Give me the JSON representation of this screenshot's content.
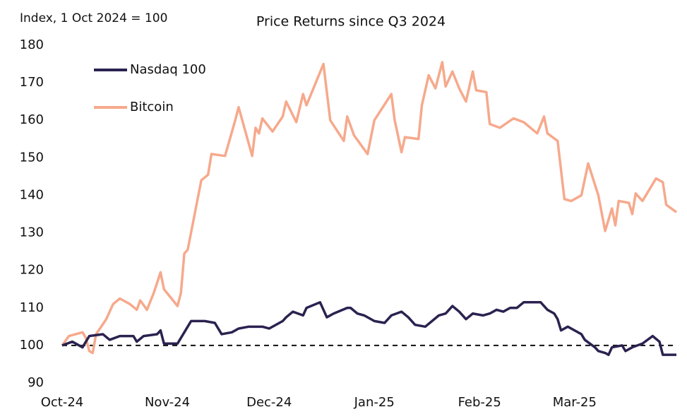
{
  "chart_data": {
    "type": "line",
    "title": "Price Returns since Q3 2024",
    "ylabel": "Index, 1 Oct 2024 = 100",
    "xlim": [
      0,
      181
    ],
    "xticks": [
      {
        "value": 0,
        "label": "Oct-24"
      },
      {
        "value": 31,
        "label": "Nov-24"
      },
      {
        "value": 61,
        "label": "Dec-24"
      },
      {
        "value": 92,
        "label": "Jan-25"
      },
      {
        "value": 123,
        "label": "Feb-25"
      },
      {
        "value": 151,
        "label": "Mar-25"
      }
    ],
    "ylim": [
      90,
      180
    ],
    "yticks": [
      90,
      100,
      110,
      120,
      130,
      140,
      150,
      160,
      170,
      180
    ],
    "reference_line": 100,
    "legend": "upper left",
    "series": [
      {
        "name": "Nasdaq 100",
        "color": "#2b2250",
        "x": [
          0,
          3,
          6,
          8,
          12,
          14,
          17,
          21,
          22,
          24,
          28,
          29,
          30,
          34,
          37,
          38,
          42,
          45,
          47,
          50,
          52,
          55,
          59,
          61,
          65,
          66,
          68,
          71,
          72,
          76,
          78,
          80,
          84,
          85,
          87,
          89,
          92,
          95,
          97,
          100,
          102,
          104,
          107,
          109,
          111,
          113,
          115,
          117,
          119,
          121,
          124,
          126,
          128,
          130,
          132,
          134,
          136,
          140,
          141,
          143,
          145,
          146,
          147,
          149,
          151,
          153,
          154,
          157,
          158,
          160,
          161,
          162,
          165,
          166,
          168,
          171,
          174,
          176,
          177,
          181
        ],
        "values": [
          100,
          101,
          99.5,
          102.5,
          103,
          101.5,
          102.5,
          102.5,
          101,
          102.5,
          103,
          104,
          100.5,
          100.5,
          105,
          106.5,
          106.5,
          106,
          103,
          103.5,
          104.5,
          105,
          105,
          104.5,
          106.5,
          107.5,
          109,
          108,
          110,
          111.5,
          107.5,
          108.5,
          110,
          110,
          108.5,
          108,
          106.5,
          106,
          108,
          109,
          107.5,
          105.5,
          105,
          106.5,
          108,
          108.5,
          110.5,
          109,
          107,
          108.5,
          108,
          108.5,
          109.5,
          109,
          110,
          110,
          111.5,
          111.5,
          111.5,
          109.5,
          108.5,
          107,
          104,
          105,
          104,
          103,
          101.5,
          99.5,
          98.5,
          98,
          97.5,
          99.5,
          100,
          98.5,
          99.5,
          100.5,
          102.5,
          101,
          97.5,
          97.5
        ]
      },
      {
        "name": "Bitcoin",
        "color": "#f6a98c",
        "x": [
          0,
          2,
          6,
          7,
          8,
          9,
          10,
          13,
          15,
          17,
          20,
          22,
          23,
          25,
          27,
          29,
          30,
          34,
          35,
          36,
          37,
          41,
          43,
          44,
          48,
          51,
          52,
          56,
          57,
          58,
          59,
          62,
          65,
          66,
          69,
          71,
          72,
          77,
          79,
          83,
          84,
          86,
          90,
          92,
          97,
          98,
          100,
          101,
          105,
          106,
          108,
          110,
          112,
          113,
          115,
          117,
          119,
          121,
          122,
          125,
          126,
          129,
          133,
          136,
          140,
          142,
          143,
          146,
          148,
          150,
          153,
          155,
          158,
          160,
          162,
          163,
          164,
          167,
          168,
          169,
          171,
          175,
          177,
          178,
          181
        ],
        "values": [
          100,
          102.5,
          103.5,
          102,
          98.5,
          98,
          103,
          107,
          111,
          112.5,
          111,
          109.5,
          112,
          109.5,
          114,
          119.5,
          115,
          110.5,
          114,
          124.5,
          125.5,
          144,
          145.5,
          151,
          150.5,
          160,
          163.5,
          150.5,
          158,
          156.5,
          160.5,
          157,
          161,
          165,
          159.5,
          167,
          164,
          175,
          160,
          154.5,
          161,
          156,
          151,
          160,
          167,
          160,
          151.5,
          155.5,
          155,
          164,
          172,
          168.5,
          175.5,
          169,
          173,
          168.5,
          165,
          173,
          168,
          167.5,
          159,
          158,
          160.5,
          159.5,
          156.5,
          161,
          156.5,
          154.5,
          139,
          138.5,
          140,
          148.5,
          140,
          130.5,
          136.5,
          132,
          138.5,
          138,
          135,
          140.5,
          138.5,
          144.5,
          143.5,
          137.5,
          135.5
        ]
      }
    ]
  }
}
